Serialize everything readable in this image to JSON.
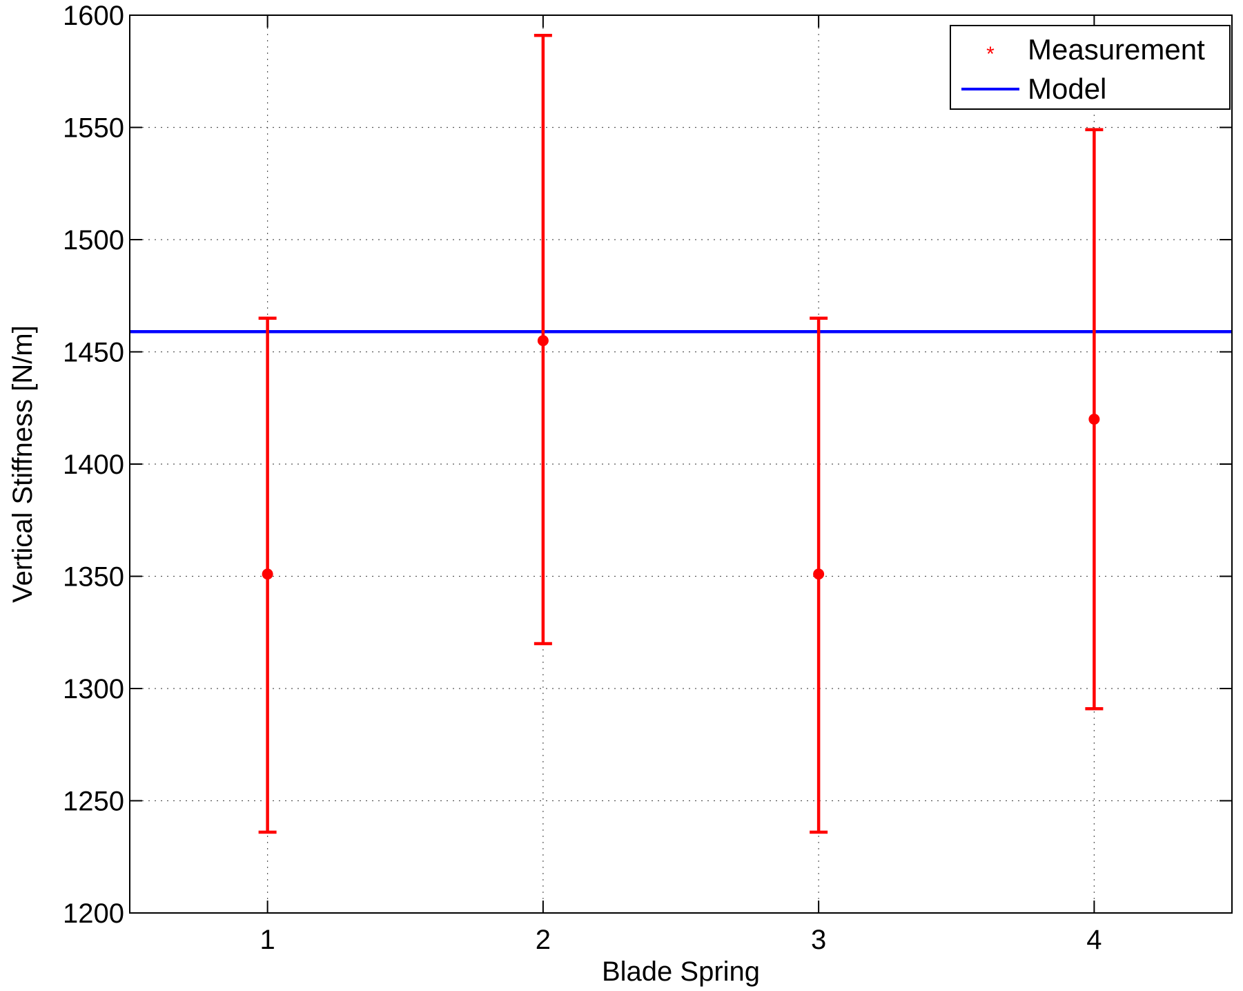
{
  "chart_data": {
    "type": "scatter",
    "title": "",
    "xlabel": "Blade Spring",
    "ylabel": "Vertical Stiffness [N/m]",
    "xlim": [
      0.5,
      4.5
    ],
    "ylim": [
      1200,
      1600
    ],
    "xticks": [
      1,
      2,
      3,
      4
    ],
    "yticks": [
      1200,
      1250,
      1300,
      1350,
      1400,
      1450,
      1500,
      1550,
      1600
    ],
    "grid": true,
    "legend_position": "top-right",
    "series": [
      {
        "name": "Measurement",
        "kind": "errorbar",
        "color": "#ff0000",
        "x": [
          1,
          2,
          3,
          4
        ],
        "y": [
          1351,
          1455,
          1351,
          1420
        ],
        "y_low": [
          1236,
          1320,
          1236,
          1291
        ],
        "y_high": [
          1465,
          1591,
          1465,
          1549
        ]
      },
      {
        "name": "Model",
        "kind": "hline",
        "color": "#0000ff",
        "y": 1459
      }
    ]
  }
}
